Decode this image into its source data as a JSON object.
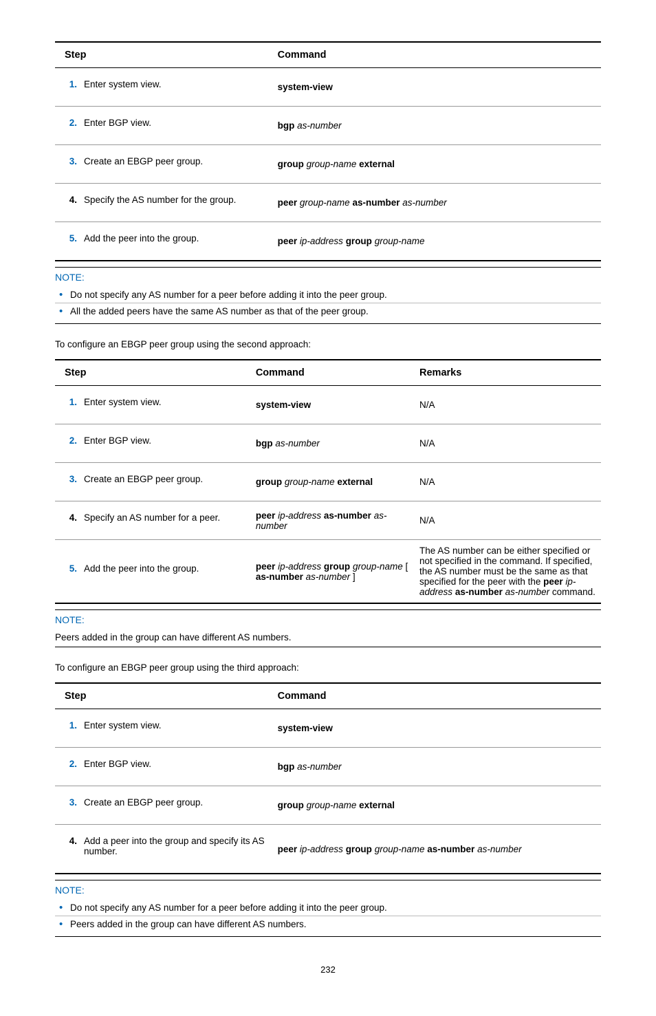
{
  "table1": {
    "headers": [
      "Step",
      "Command"
    ],
    "rows": [
      {
        "num": "1.",
        "numColor": "blue",
        "step": "Enter system view.",
        "cmd_html": "<span class='bold'>system-view</span>"
      },
      {
        "num": "2.",
        "numColor": "blue",
        "step": "Enter BGP view.",
        "cmd_html": "<span class='bold'>bgp</span> <span class='ital'>as-number</span>"
      },
      {
        "num": "3.",
        "numColor": "blue",
        "step": "Create an EBGP peer group.",
        "cmd_html": "<span class='bold'>group</span> <span class='ital'>group-name</span> <span class='bold'>external</span>"
      },
      {
        "num": "4.",
        "numColor": "black",
        "step": "Specify the AS number for the group.",
        "cmd_html": "<span class='bold'>peer</span> <span class='ital'>group-name</span> <span class='bold'>as-number</span> <span class='ital'>as-number</span>"
      },
      {
        "num": "5.",
        "numColor": "blue",
        "step": "Add the peer into the group.",
        "cmd_html": "<span class='bold'>peer</span> <span class='ital'>ip-address</span> <span class='bold'>group</span> <span class='ital'>group-name</span>"
      }
    ]
  },
  "note1": {
    "label": "NOTE:",
    "items": [
      "Do not specify any AS number for a peer before adding it into the peer group.",
      "All the added peers have the same AS number as that of the peer group."
    ]
  },
  "para1": "To configure an EBGP peer group using the second approach:",
  "table2": {
    "headers": [
      "Step",
      "Command",
      "Remarks"
    ],
    "rows": [
      {
        "num": "1.",
        "numColor": "blue",
        "step": "Enter system view.",
        "cmd_html": "<span class='bold'>system-view</span>",
        "rem_html": "N/A"
      },
      {
        "num": "2.",
        "numColor": "blue",
        "step": "Enter BGP view.",
        "cmd_html": "<span class='bold'>bgp</span> <span class='ital'>as-number</span>",
        "rem_html": "N/A"
      },
      {
        "num": "3.",
        "numColor": "blue",
        "step": "Create an EBGP peer group.",
        "cmd_html": "<span class='bold'>group</span> <span class='ital'>group-name</span> <span class='bold'>external</span>",
        "rem_html": "N/A"
      },
      {
        "num": "4.",
        "numColor": "black",
        "step": "Specify an AS number for a peer.",
        "cmd_html": "<span class='bold'>peer</span> <span class='ital'>ip-address</span> <span class='bold'>as-number</span> <span class='ital'>as-number</span>",
        "rem_html": "N/A"
      },
      {
        "num": "5.",
        "numColor": "blue",
        "step": "Add the peer into the group.",
        "cmd_html": "<span class='bold'>peer</span> <span class='ital'>ip-address</span> <span class='bold'>group</span> <span class='ital'>group-name</span> [ <span class='bold'>as-number</span> <span class='ital'>as-number</span> ]",
        "rem_html": "The AS number can be either specified or not specified in the command. If specified, the AS number must be the same as that specified for the peer with the <span class='bold'>peer</span> <span class='ital'>ip-address</span> <span class='bold'>as-number</span> <span class='ital'>as-number</span> command."
      }
    ]
  },
  "note2": {
    "label": "NOTE:",
    "text": "Peers added in the group can have different AS numbers."
  },
  "para2": "To configure an EBGP peer group using the third approach:",
  "table3": {
    "headers": [
      "Step",
      "Command"
    ],
    "rows": [
      {
        "num": "1.",
        "numColor": "blue",
        "step": "Enter system view.",
        "cmd_html": "<span class='bold'>system-view</span>"
      },
      {
        "num": "2.",
        "numColor": "blue",
        "step": "Enter BGP view.",
        "cmd_html": "<span class='bold'>bgp</span> <span class='ital'>as-number</span>"
      },
      {
        "num": "3.",
        "numColor": "blue",
        "step": "Create an EBGP peer group.",
        "cmd_html": "<span class='bold'>group</span> <span class='ital'>group-name</span> <span class='bold'>external</span>"
      },
      {
        "num": "4.",
        "numColor": "black",
        "step": "Add a peer into the group and specify its AS number.",
        "cmd_html": "<span class='bold'>peer</span> <span class='ital'>ip-address</span> <span class='bold'>group</span> <span class='ital'>group-name</span> <span class='bold'>as-number</span> <span class='ital'>as-number</span>"
      }
    ]
  },
  "note3": {
    "label": "NOTE:",
    "items": [
      "Do not specify any AS number for a peer before adding it into the peer group.",
      "Peers added in the group can have different AS numbers."
    ]
  },
  "pagenum": "232"
}
